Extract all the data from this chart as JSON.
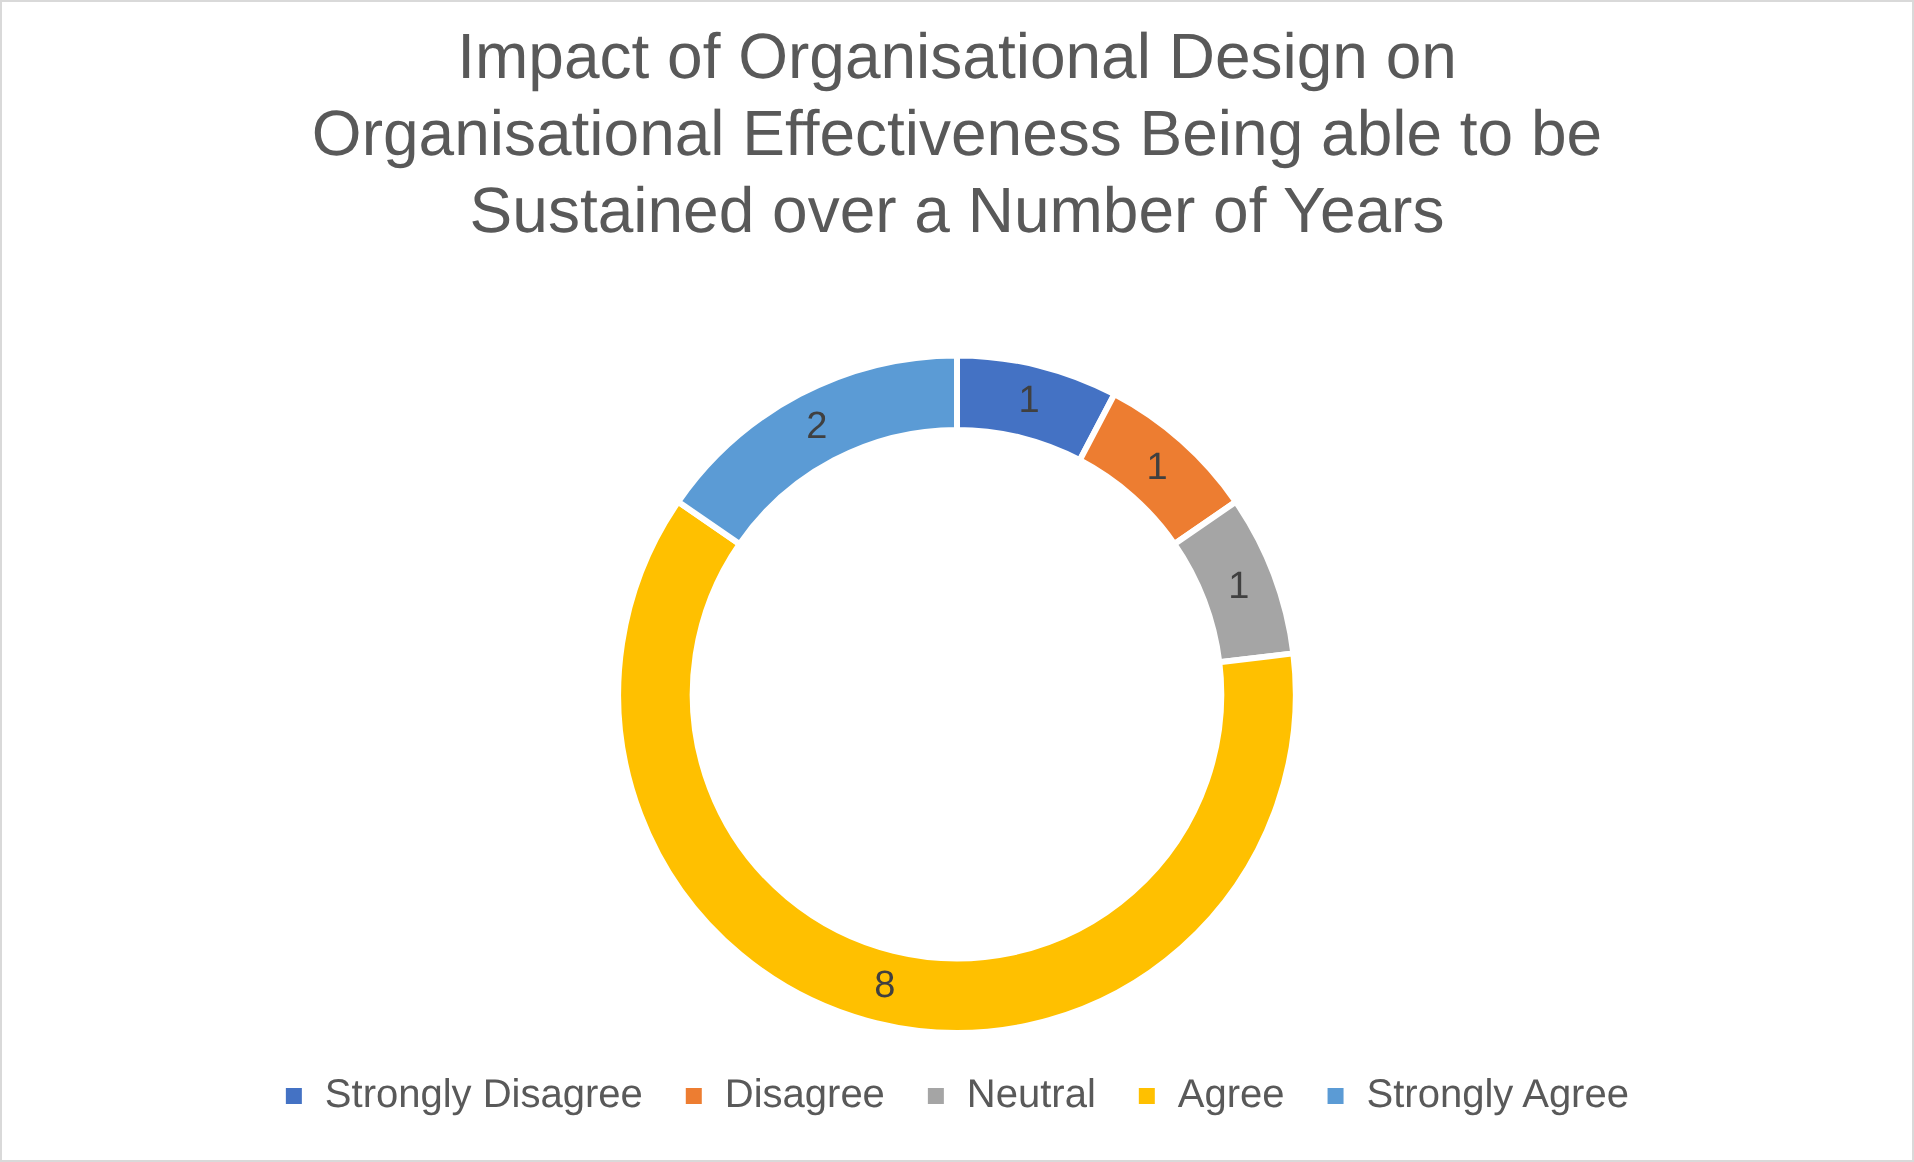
{
  "chart_data": {
    "type": "donut",
    "title": "Impact of Organisational Design on Organisational Effectiveness Being able to be Sustained over a Number of Years",
    "categories": [
      "Strongly Disagree",
      "Disagree",
      "Neutral",
      "Agree",
      "Strongly Agree"
    ],
    "values": [
      1,
      1,
      1,
      8,
      2
    ],
    "colors": [
      "#4472c4",
      "#ed7d31",
      "#a5a5a5",
      "#ffc000",
      "#5b9bd5"
    ],
    "data_labels": true,
    "legend": "bottom"
  }
}
